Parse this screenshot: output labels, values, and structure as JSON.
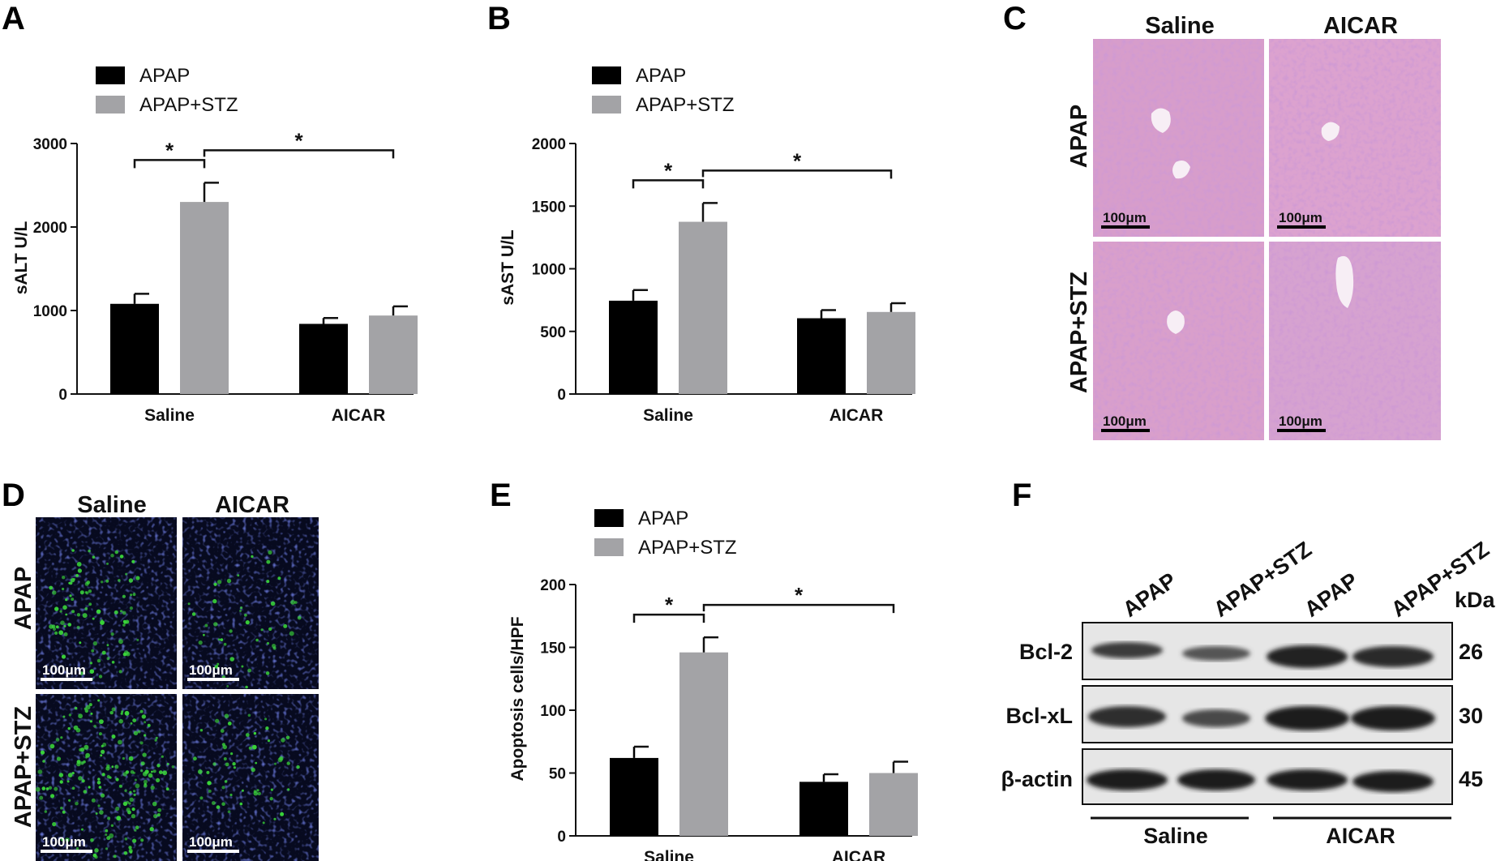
{
  "panels": {
    "A": {
      "label": "A"
    },
    "B": {
      "label": "B"
    },
    "C": {
      "label": "C"
    },
    "D": {
      "label": "D"
    },
    "E": {
      "label": "E"
    },
    "F": {
      "label": "F"
    }
  },
  "colors": {
    "APAP": "#000000",
    "APAP+STZ": "#a3a3a6",
    "he_tissue": "#d9a0cc",
    "fluor_bg": "#0a0d24",
    "tunel": "#3ad43a"
  },
  "chart_data": [
    {
      "panel": "A",
      "type": "bar",
      "ylabel": "sALT U/L",
      "categories": [
        "Saline",
        "AICAR"
      ],
      "series": [
        {
          "name": "APAP",
          "values": [
            1080,
            840
          ],
          "errors": [
            120,
            70
          ]
        },
        {
          "name": "APAP+STZ",
          "values": [
            2300,
            940
          ],
          "errors": [
            230,
            110
          ]
        }
      ],
      "ylim": [
        0,
        3000
      ],
      "yticks": [
        "0",
        "1000",
        "2000",
        "3000"
      ],
      "significance": [
        "*",
        "*"
      ],
      "legend": "top-left"
    },
    {
      "panel": "B",
      "type": "bar",
      "ylabel": "sAST U/L",
      "categories": [
        "Saline",
        "AICAR"
      ],
      "series": [
        {
          "name": "APAP",
          "values": [
            745,
            605
          ],
          "errors": [
            85,
            65
          ]
        },
        {
          "name": "APAP+STZ",
          "values": [
            1375,
            655
          ],
          "errors": [
            150,
            70
          ]
        }
      ],
      "ylim": [
        0,
        2000
      ],
      "yticks": [
        "0",
        "500",
        "1000",
        "1500",
        "2000"
      ],
      "significance": [
        "*",
        "*"
      ],
      "legend": "top-left"
    },
    {
      "panel": "E",
      "type": "bar",
      "ylabel": "Apoptosis cells/HPF",
      "categories": [
        "Saline",
        "AICAR"
      ],
      "series": [
        {
          "name": "APAP",
          "values": [
            62,
            43
          ],
          "errors": [
            9,
            6
          ]
        },
        {
          "name": "APAP+STZ",
          "values": [
            146,
            50
          ],
          "errors": [
            12,
            9
          ]
        }
      ],
      "ylim": [
        0,
        200
      ],
      "yticks": [
        "0",
        "50",
        "100",
        "150",
        "200"
      ],
      "significance": [
        "*",
        "*"
      ],
      "legend": "top-left"
    }
  ],
  "histology": {
    "columns": [
      "Saline",
      "AICAR"
    ],
    "rows": [
      "APAP",
      "APAP+STZ"
    ],
    "scale_bar": "100μm"
  },
  "blot": {
    "lanes": [
      "APAP",
      "APAP+STZ",
      "APAP",
      "APAP+STZ"
    ],
    "unit": "kDa",
    "proteins": [
      {
        "name": "Bcl-2",
        "kda": "26"
      },
      {
        "name": "Bcl-xL",
        "kda": "30"
      },
      {
        "name": "β-actin",
        "kda": "45"
      }
    ],
    "groups": [
      "Saline",
      "AICAR"
    ]
  }
}
